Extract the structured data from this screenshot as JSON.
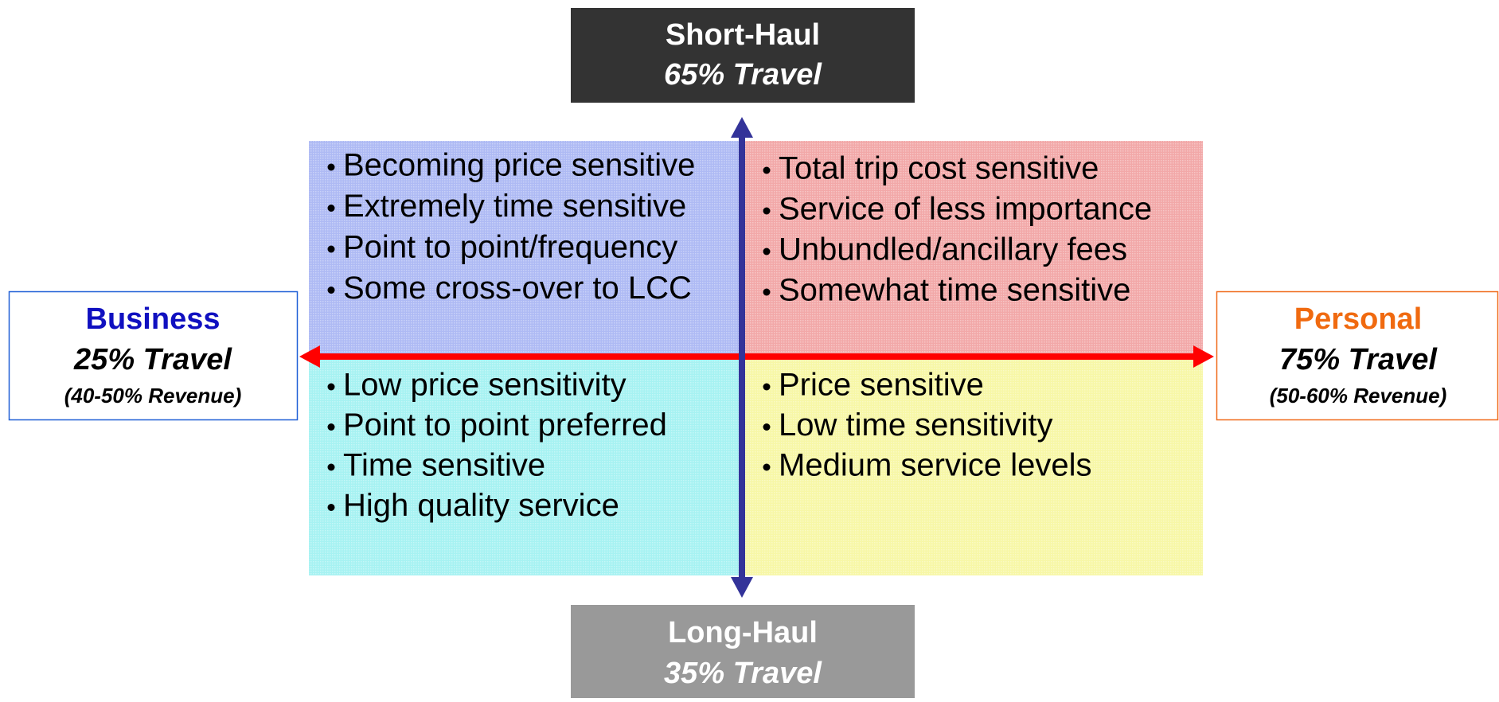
{
  "top_label": {
    "title": "Short-Haul",
    "subtitle": "65% Travel"
  },
  "bottom_label": {
    "title": "Long-Haul",
    "subtitle": "35% Travel"
  },
  "left_label": {
    "title": "Business",
    "subtitle": "25% Travel",
    "note": "(40-50% Revenue)"
  },
  "right_label": {
    "title": "Personal",
    "subtitle": "75% Travel",
    "note": "(50-60% Revenue)"
  },
  "quadrants": {
    "top_left": [
      "Becoming price sensitive",
      "Extremely time sensitive",
      "Point to point/frequency",
      "Some cross-over to LCC"
    ],
    "top_right": [
      "Total trip cost sensitive",
      "Service of less importance",
      "Unbundled/ancillary fees",
      "Somewhat time sensitive"
    ],
    "bottom_left": [
      "Low price sensitivity",
      "Point to point preferred",
      "Time sensitive",
      "High quality service"
    ],
    "bottom_right": [
      "Price sensitive",
      "Low time sensitivity",
      "Medium service levels"
    ]
  }
}
